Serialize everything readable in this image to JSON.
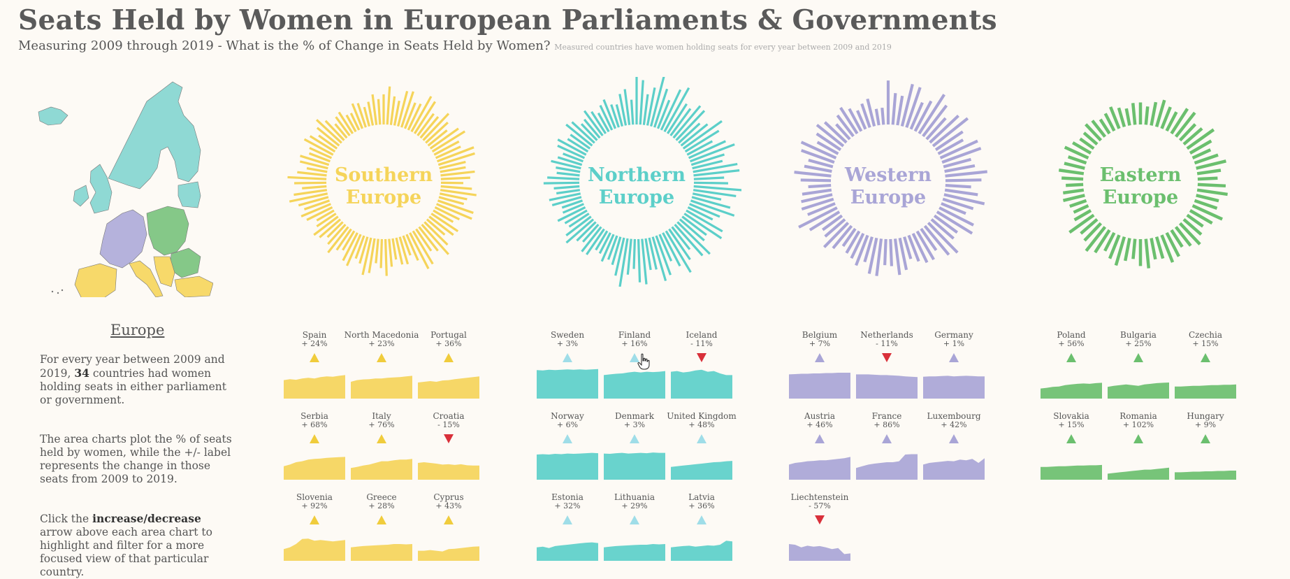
{
  "title": "Seats Held by Women in European Parliaments & Governments",
  "subtitle": "Measuring 2009 through 2019 - What is the % of Change in Seats Held by Women?",
  "subtitle_note": "Measured countries have women holding seats for every year between 2009 and 2019",
  "europe_heading": "Europe",
  "paragraphs": {
    "p1_a": "For every year between 2009 and 2019, ",
    "p1_bold": "34",
    "p1_b": " countries had women holding seats in either parliament or government.",
    "p2": "The area charts plot the % of seats held by women, while the +/- label represents the change in those seats from 2009 to 2019.",
    "p3_a": "Click the ",
    "p3_bold": "increase/decrease",
    "p3_b": " arrow above each area chart to highlight and filter for a more focused view of that particular country."
  },
  "colors": {
    "southern": "#f5d45a",
    "northern": "#5ccfc9",
    "western": "#a9a5d6",
    "eastern": "#6bbf6e",
    "up_arrow_southern": "#f0cc3c",
    "up_arrow_northern": "#9fdde8",
    "up_arrow_western": "#a9a5d6",
    "up_arrow_eastern": "#6bbf6e",
    "down_arrow": "#d9303a"
  },
  "chart_data": {
    "type": "radial-bar-and-area-small-multiples",
    "years": [
      2009,
      2019
    ],
    "regions": [
      {
        "key": "southern",
        "name_line1": "Southern",
        "name_line2": "Europe",
        "countries": [
          {
            "name": "Spain",
            "change": "+ 24%",
            "dir": "up",
            "values": [
              0.55,
              0.58,
              0.56,
              0.6,
              0.62,
              0.6,
              0.64,
              0.66,
              0.65,
              0.68,
              0.7
            ]
          },
          {
            "name": "North Macedonia",
            "change": "+ 23%",
            "dir": "up",
            "values": [
              0.5,
              0.55,
              0.57,
              0.58,
              0.6,
              0.6,
              0.62,
              0.63,
              0.64,
              0.66,
              0.68
            ]
          },
          {
            "name": "Portugal",
            "change": "+ 36%",
            "dir": "up",
            "values": [
              0.48,
              0.5,
              0.52,
              0.5,
              0.54,
              0.55,
              0.58,
              0.6,
              0.62,
              0.64,
              0.66
            ]
          },
          {
            "name": "Serbia",
            "change": "+ 68%",
            "dir": "up",
            "values": [
              0.4,
              0.45,
              0.52,
              0.55,
              0.6,
              0.62,
              0.63,
              0.65,
              0.66,
              0.67,
              0.68
            ]
          },
          {
            "name": "Italy",
            "change": "+ 76%",
            "dir": "up",
            "values": [
              0.35,
              0.38,
              0.42,
              0.45,
              0.5,
              0.55,
              0.55,
              0.58,
              0.6,
              0.6,
              0.62
            ]
          },
          {
            "name": "Croatia",
            "change": "- 15%",
            "dir": "down",
            "values": [
              0.5,
              0.52,
              0.5,
              0.48,
              0.45,
              0.46,
              0.44,
              0.46,
              0.43,
              0.42,
              0.42
            ]
          },
          {
            "name": "Slovenia",
            "change": "+ 92%",
            "dir": "up",
            "values": [
              0.35,
              0.4,
              0.5,
              0.65,
              0.66,
              0.6,
              0.62,
              0.6,
              0.58,
              0.6,
              0.62
            ]
          },
          {
            "name": "Greece",
            "change": "+ 28%",
            "dir": "up",
            "values": [
              0.4,
              0.42,
              0.44,
              0.45,
              0.46,
              0.47,
              0.48,
              0.5,
              0.5,
              0.49,
              0.5
            ]
          },
          {
            "name": "Cyprus",
            "change": "+ 43%",
            "dir": "up",
            "values": [
              0.3,
              0.3,
              0.32,
              0.3,
              0.28,
              0.35,
              0.36,
              0.38,
              0.4,
              0.42,
              0.43
            ]
          }
        ]
      },
      {
        "key": "northern",
        "name_line1": "Northern",
        "name_line2": "Europe",
        "countries": [
          {
            "name": "Sweden",
            "change": "+ 3%",
            "dir": "up",
            "values": [
              0.85,
              0.84,
              0.86,
              0.85,
              0.86,
              0.87,
              0.86,
              0.87,
              0.86,
              0.87,
              0.88
            ]
          },
          {
            "name": "Finland",
            "change": "+ 16%",
            "dir": "up",
            "values": [
              0.7,
              0.72,
              0.74,
              0.75,
              0.78,
              0.8,
              0.78,
              0.8,
              0.79,
              0.8,
              0.82
            ]
          },
          {
            "name": "Iceland",
            "change": "- 11%",
            "dir": "down",
            "values": [
              0.8,
              0.82,
              0.78,
              0.8,
              0.84,
              0.86,
              0.8,
              0.82,
              0.75,
              0.7,
              0.7
            ]
          },
          {
            "name": "Norway",
            "change": "+ 6%",
            "dir": "up",
            "values": [
              0.75,
              0.76,
              0.75,
              0.77,
              0.76,
              0.78,
              0.77,
              0.78,
              0.79,
              0.8,
              0.79
            ]
          },
          {
            "name": "Denmark",
            "change": "+ 3%",
            "dir": "up",
            "values": [
              0.78,
              0.77,
              0.79,
              0.8,
              0.78,
              0.79,
              0.8,
              0.79,
              0.81,
              0.8,
              0.8
            ]
          },
          {
            "name": "United Kingdom",
            "change": "+ 48%",
            "dir": "up",
            "values": [
              0.38,
              0.4,
              0.42,
              0.44,
              0.46,
              0.48,
              0.5,
              0.52,
              0.53,
              0.55,
              0.56
            ]
          },
          {
            "name": "Estonia",
            "change": "+ 32%",
            "dir": "up",
            "values": [
              0.4,
              0.42,
              0.38,
              0.44,
              0.46,
              0.48,
              0.5,
              0.52,
              0.54,
              0.55,
              0.53
            ]
          },
          {
            "name": "Lithuania",
            "change": "+ 29%",
            "dir": "up",
            "values": [
              0.4,
              0.42,
              0.44,
              0.45,
              0.46,
              0.47,
              0.48,
              0.48,
              0.5,
              0.49,
              0.5
            ]
          },
          {
            "name": "Latvia",
            "change": "+ 36%",
            "dir": "up",
            "values": [
              0.4,
              0.42,
              0.44,
              0.45,
              0.42,
              0.44,
              0.46,
              0.45,
              0.48,
              0.6,
              0.58
            ]
          }
        ]
      },
      {
        "key": "western",
        "name_line1": "Western",
        "name_line2": "Europe",
        "countries": [
          {
            "name": "Belgium",
            "change": "+ 7%",
            "dir": "up",
            "values": [
              0.72,
              0.73,
              0.74,
              0.74,
              0.75,
              0.75,
              0.76,
              0.76,
              0.77,
              0.77,
              0.77
            ]
          },
          {
            "name": "Netherlands",
            "change": "- 11%",
            "dir": "down",
            "values": [
              0.72,
              0.72,
              0.72,
              0.71,
              0.7,
              0.7,
              0.69,
              0.68,
              0.66,
              0.65,
              0.64
            ]
          },
          {
            "name": "Germany",
            "change": "+ 1%",
            "dir": "up",
            "values": [
              0.65,
              0.66,
              0.66,
              0.67,
              0.68,
              0.66,
              0.67,
              0.68,
              0.67,
              0.66,
              0.66
            ]
          },
          {
            "name": "Austria",
            "change": "+ 46%",
            "dir": "up",
            "values": [
              0.45,
              0.5,
              0.52,
              0.55,
              0.56,
              0.58,
              0.58,
              0.6,
              0.62,
              0.64,
              0.68
            ]
          },
          {
            "name": "France",
            "change": "+ 86%",
            "dir": "up",
            "values": [
              0.35,
              0.4,
              0.45,
              0.48,
              0.5,
              0.52,
              0.52,
              0.55,
              0.75,
              0.76,
              0.76
            ]
          },
          {
            "name": "Luxembourg",
            "change": "+ 42%",
            "dir": "up",
            "values": [
              0.45,
              0.5,
              0.52,
              0.54,
              0.56,
              0.55,
              0.6,
              0.58,
              0.62,
              0.5,
              0.64
            ]
          },
          {
            "name": "Liechtenstein",
            "change": "- 57%",
            "dir": "down",
            "values": [
              0.5,
              0.48,
              0.4,
              0.45,
              0.42,
              0.44,
              0.4,
              0.35,
              0.38,
              0.2,
              0.22
            ]
          }
        ]
      },
      {
        "key": "eastern",
        "name_line1": "Eastern",
        "name_line2": "Europe",
        "countries": [
          {
            "name": "Poland",
            "change": "+ 56%",
            "dir": "up",
            "values": [
              0.3,
              0.32,
              0.35,
              0.36,
              0.4,
              0.42,
              0.44,
              0.45,
              0.44,
              0.46,
              0.47
            ]
          },
          {
            "name": "Bulgaria",
            "change": "+ 25%",
            "dir": "up",
            "values": [
              0.35,
              0.38,
              0.4,
              0.42,
              0.4,
              0.38,
              0.42,
              0.44,
              0.46,
              0.47,
              0.48
            ]
          },
          {
            "name": "Czechia",
            "change": "+ 15%",
            "dir": "up",
            "values": [
              0.36,
              0.36,
              0.37,
              0.38,
              0.38,
              0.39,
              0.4,
              0.4,
              0.41,
              0.41,
              0.42
            ]
          },
          {
            "name": "Slovakia",
            "change": "+ 15%",
            "dir": "up",
            "values": [
              0.38,
              0.38,
              0.39,
              0.4,
              0.4,
              0.41,
              0.42,
              0.42,
              0.43,
              0.43,
              0.44
            ]
          },
          {
            "name": "Romania",
            "change": "+ 102%",
            "dir": "up",
            "values": [
              0.18,
              0.2,
              0.22,
              0.24,
              0.26,
              0.28,
              0.3,
              0.3,
              0.32,
              0.34,
              0.36
            ]
          },
          {
            "name": "Hungary",
            "change": "+ 9%",
            "dir": "up",
            "values": [
              0.22,
              0.22,
              0.23,
              0.24,
              0.24,
              0.25,
              0.25,
              0.26,
              0.26,
              0.27,
              0.27
            ]
          }
        ]
      }
    ]
  }
}
